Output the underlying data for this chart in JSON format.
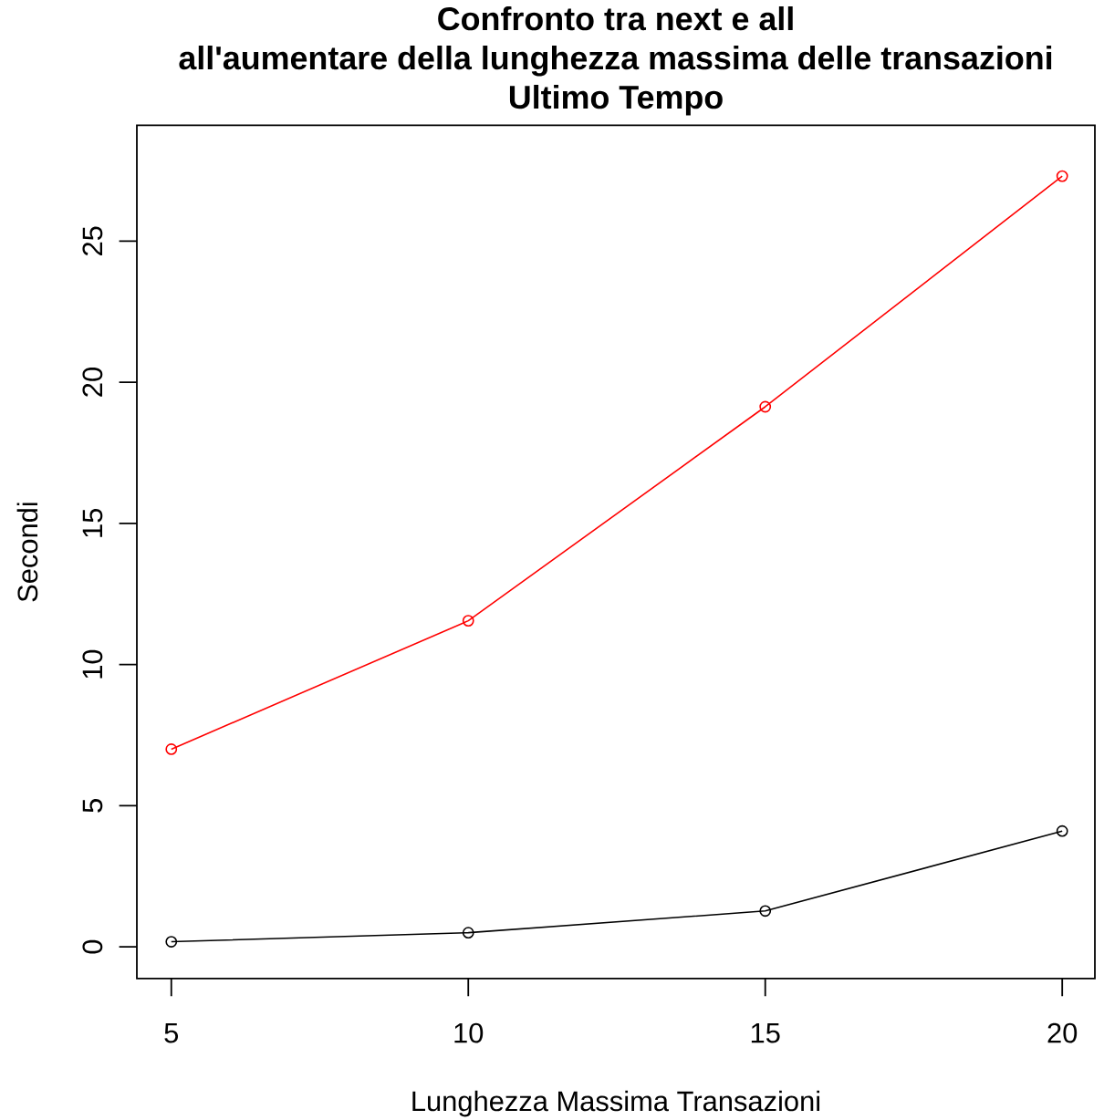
{
  "chart_data": {
    "type": "line",
    "title": "Confronto tra next e all",
    "subtitle": "all'aumentare della lunghezza massima delle transazioni",
    "annotations": [
      "Ultimo Tempo"
    ],
    "xlabel": "Lunghezza Massima Transazioni",
    "ylabel": "Secondi",
    "x": [
      5,
      10,
      15,
      20
    ],
    "series": [
      {
        "color": "#ff0000",
        "values": [
          7.0,
          11.55,
          19.13,
          27.3
        ]
      },
      {
        "color": "#000000",
        "values": [
          0.18,
          0.5,
          1.27,
          4.1
        ]
      }
    ],
    "xlim": [
      4.42,
      20.55
    ],
    "ylim": [
      -1.12,
      29.1
    ],
    "xticks": [
      5,
      10,
      15,
      20
    ],
    "yticks": [
      0,
      5,
      10,
      15,
      20,
      25
    ],
    "marker": "circle",
    "line_style": "solid"
  }
}
